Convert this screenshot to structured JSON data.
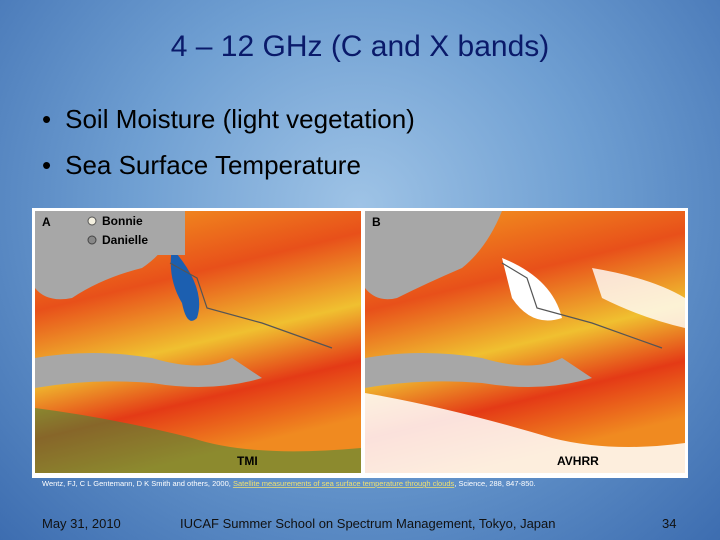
{
  "title": "4 – 12 GHz (C and X bands)",
  "bullets": [
    "Soil Moisture (light vegetation)",
    "Sea Surface Temperature"
  ],
  "figure": {
    "panels": [
      {
        "label": "A",
        "legend": [
          "Bonnie",
          "Danielle"
        ],
        "caption": "TMI"
      },
      {
        "label": "B",
        "caption": "AVHRR"
      }
    ],
    "citation": {
      "authors": "Wentz, FJ, C L Gentemann, D K Smith and others, 2000,",
      "link": "Satellite measurements of sea surface temperature through clouds",
      "source": ", Science, 288, 847-850."
    }
  },
  "footer": {
    "date": "May 31, 2010",
    "event": "IUCAF Summer School on Spectrum Management, Tokyo, Japan",
    "page": "34"
  }
}
